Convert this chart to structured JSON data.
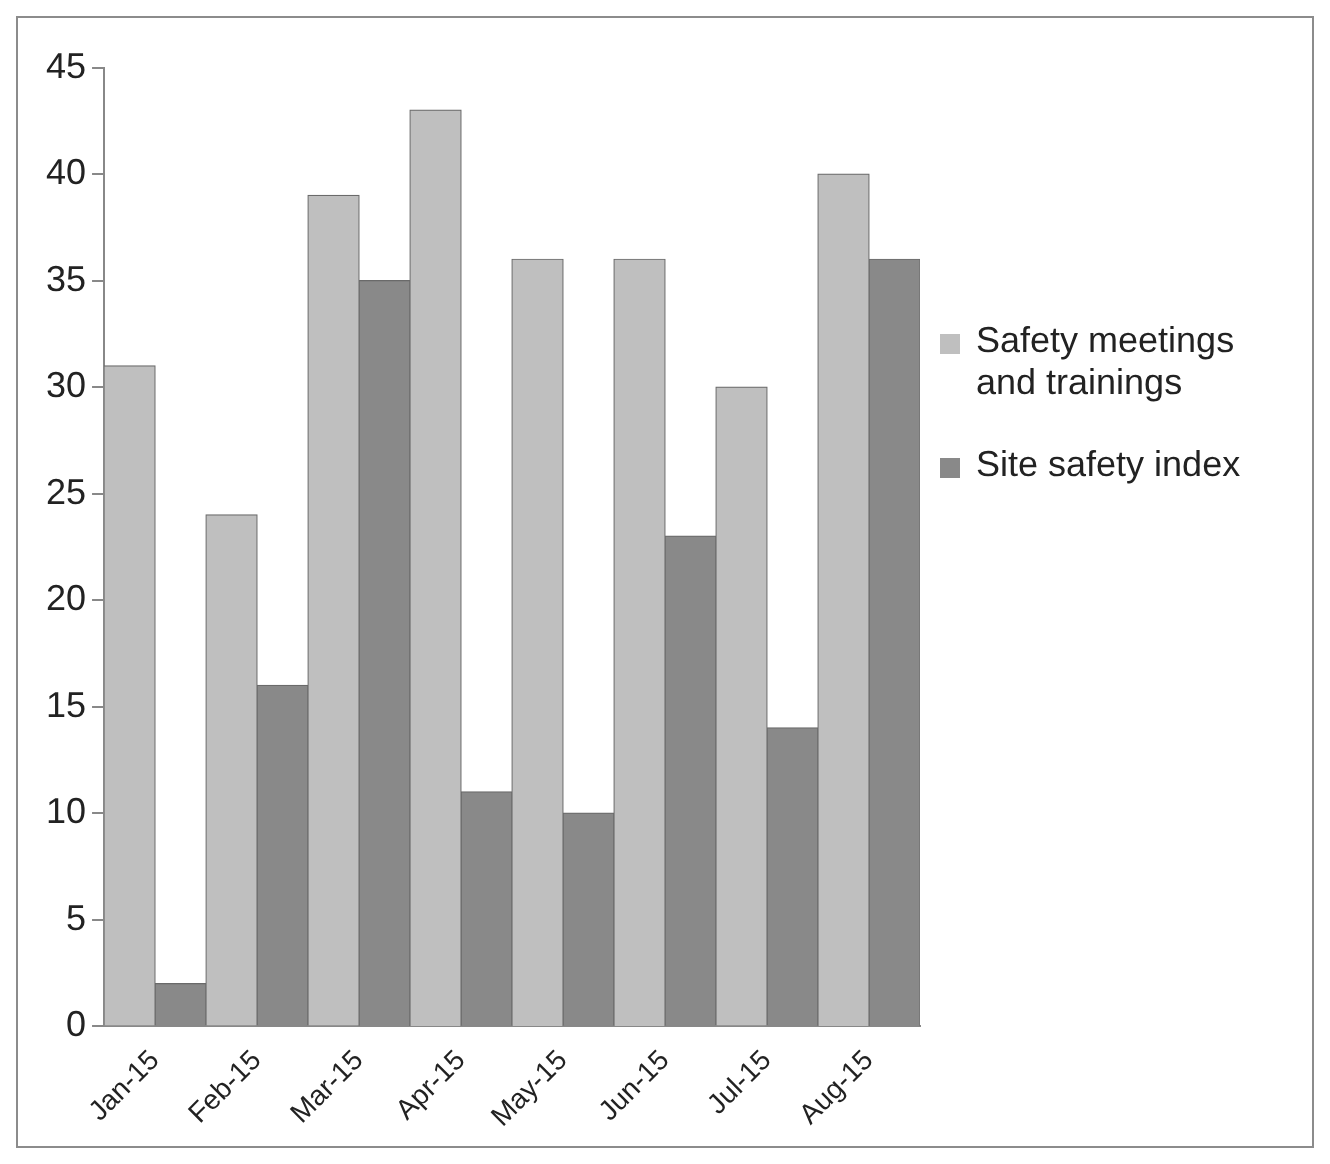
{
  "chart_data": {
    "type": "bar",
    "categories": [
      "Jan-15",
      "Feb-15",
      "Mar-15",
      "Apr-15",
      "May-15",
      "Jun-15",
      "Jul-15",
      "Aug-15"
    ],
    "series": [
      {
        "name": "Safety meetings and trainings",
        "color": "#bfbfbf",
        "values": [
          31,
          24,
          39,
          43,
          36,
          36,
          30,
          40
        ]
      },
      {
        "name": "Site safety index",
        "color": "#898989",
        "values": [
          2,
          16,
          35,
          11,
          10,
          23,
          14,
          36
        ]
      }
    ],
    "ylim": [
      0,
      45
    ],
    "yticks": [
      0,
      5,
      10,
      15,
      20,
      25,
      30,
      35,
      40,
      45
    ],
    "grid": false,
    "legend": "right"
  }
}
